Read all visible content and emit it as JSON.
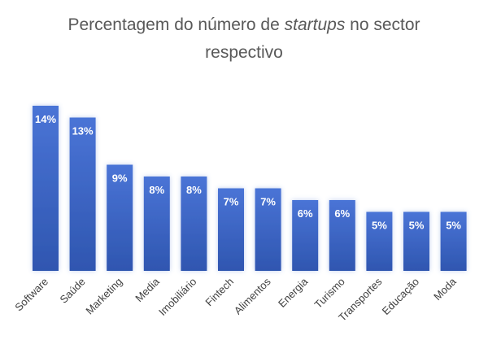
{
  "chart_data": {
    "type": "bar",
    "title_pre": "Percentagem do número de ",
    "title_em": "startups",
    "title_post": " no sector",
    "title_line2": "respectivo",
    "categories": [
      "Software",
      "Saúde",
      "Marketing",
      "Media",
      "Imobiliário",
      "Fintech",
      "Alimentos",
      "Energia",
      "Turismo",
      "Transportes",
      "Educação",
      "Moda"
    ],
    "values": [
      14,
      13,
      9,
      8,
      8,
      7,
      7,
      6,
      6,
      5,
      5,
      5
    ],
    "value_labels": [
      "14%",
      "13%",
      "9%",
      "8%",
      "8%",
      "7%",
      "7%",
      "6%",
      "6%",
      "5%",
      "5%",
      "5%"
    ],
    "unit": "%",
    "ylim": [
      0,
      14
    ],
    "grid": false,
    "legend": "none",
    "colors": {
      "bar_top": "#4a74d6",
      "bar_bottom": "#2f56b0",
      "label": "#ffffff",
      "axis_text": "#404040",
      "title": "#595959"
    }
  }
}
